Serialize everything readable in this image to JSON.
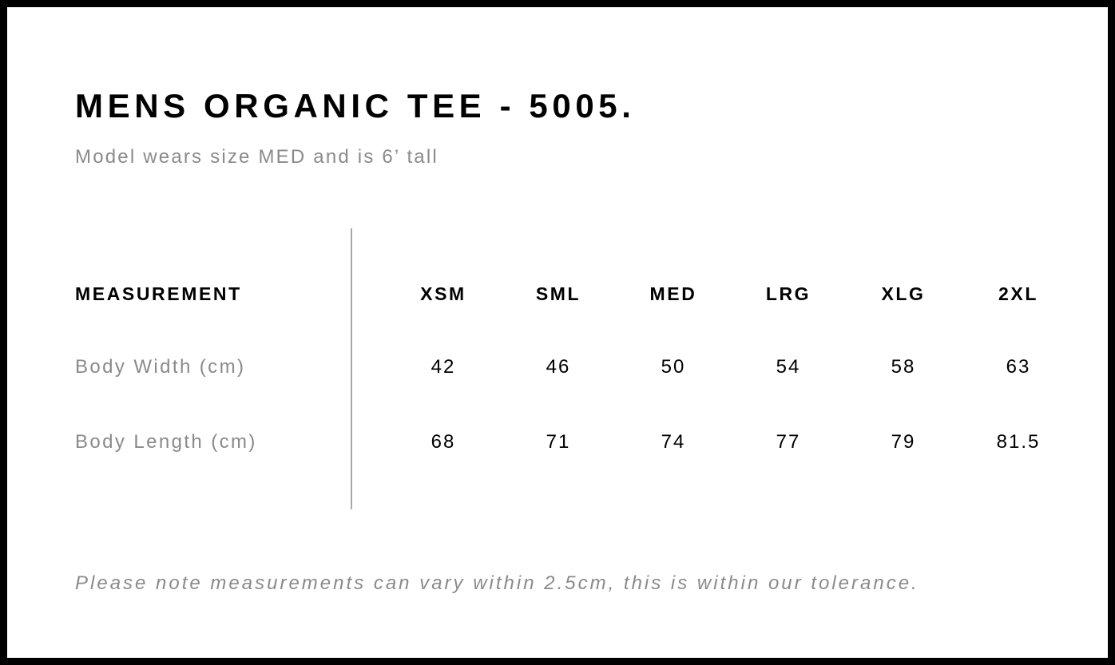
{
  "title": "MENS ORGANIC TEE - 5005.",
  "subtitle": "Model wears size MED and is 6’ tall",
  "table": {
    "header_label": "MEASUREMENT",
    "sizes": [
      "XSM",
      "SML",
      "MED",
      "LRG",
      "XLG",
      "2XL"
    ],
    "rows": [
      {
        "label": "Body Width (cm)",
        "values": [
          "42",
          "46",
          "50",
          "54",
          "58",
          "63"
        ]
      },
      {
        "label": "Body Length (cm)",
        "values": [
          "68",
          "71",
          "74",
          "77",
          "79",
          "81.5"
        ]
      }
    ]
  },
  "note": "Please note measurements can vary within 2.5cm, this is within our tolerance.",
  "colors": {
    "border": "#000000",
    "text": "#000000",
    "muted": "#8a8a8a",
    "divider": "#a8a8a8"
  }
}
